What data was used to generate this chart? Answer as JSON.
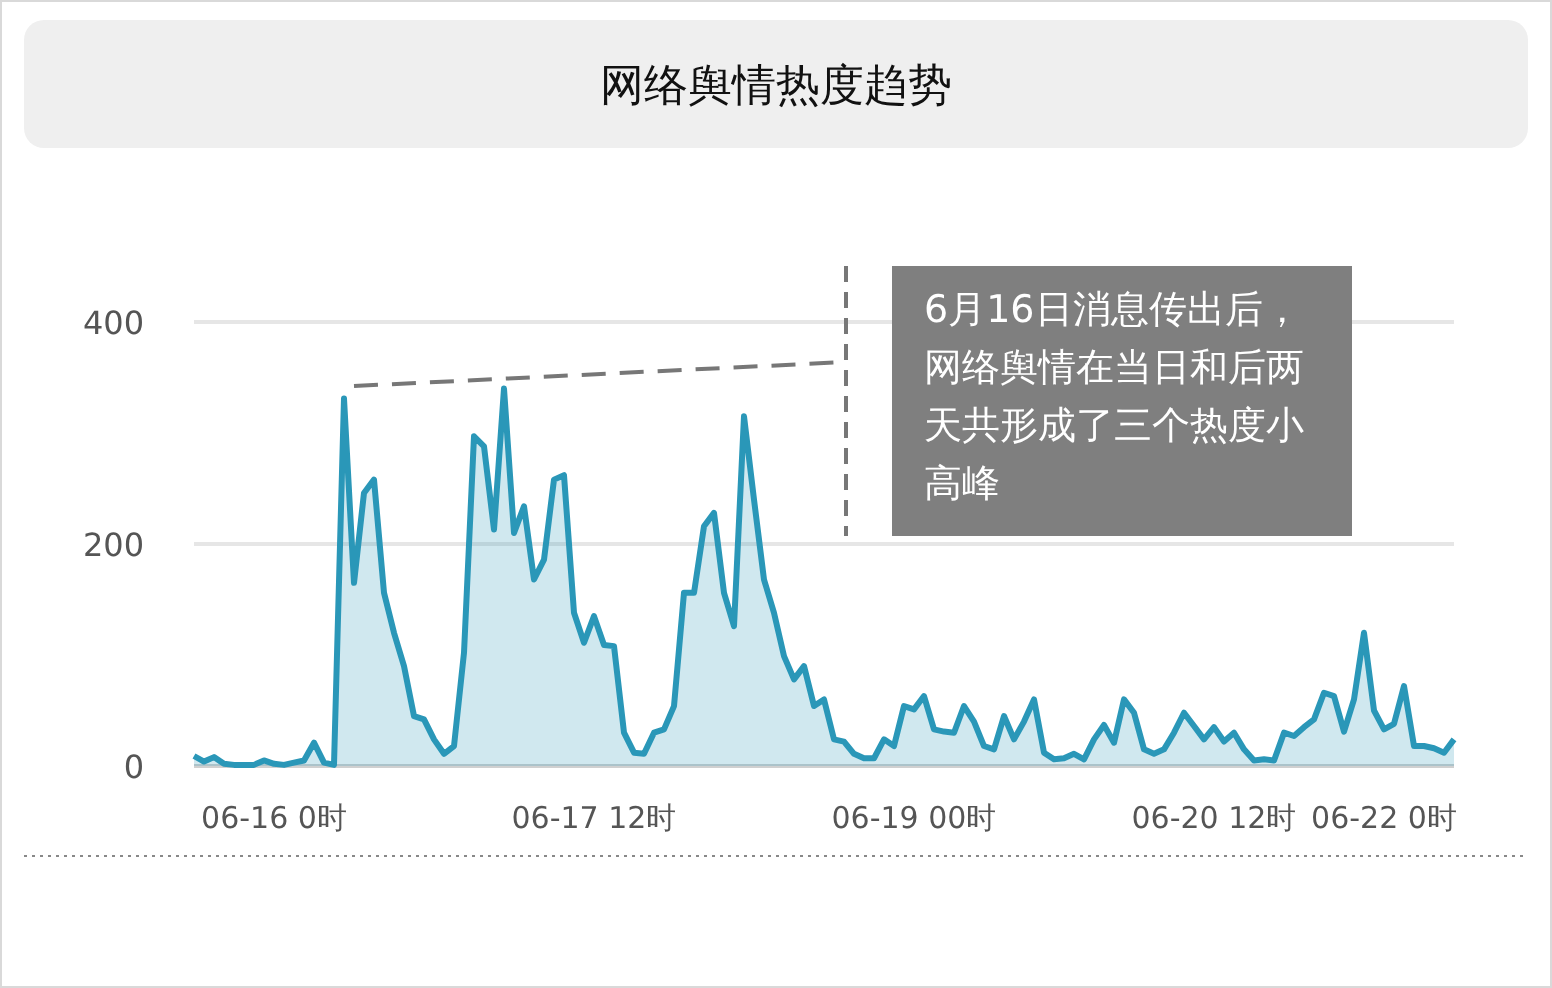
{
  "chart_data": {
    "type": "area",
    "title": "网络舆情热度趋势",
    "categories": [
      null,
      null,
      null,
      null,
      null,
      null,
      null,
      null,
      "06-16 0时",
      null,
      null,
      null,
      null,
      null,
      null,
      null,
      null,
      null,
      null,
      null,
      null,
      null,
      null,
      null,
      null,
      null,
      null,
      null,
      null,
      null,
      null,
      null,
      null,
      null,
      null,
      null,
      null,
      null,
      null,
      null,
      "06-17 12时",
      null,
      null,
      null,
      null,
      null,
      null,
      null,
      null,
      null,
      null,
      null,
      null,
      null,
      null,
      null,
      null,
      null,
      null,
      null,
      null,
      null,
      null,
      null,
      null,
      null,
      null,
      null,
      null,
      null,
      null,
      null,
      "06-19 00时",
      null,
      null,
      null,
      null,
      null,
      null,
      null,
      null,
      null,
      null,
      null,
      null,
      null,
      null,
      null,
      null,
      null,
      null,
      null,
      null,
      null,
      null,
      null,
      null,
      null,
      null,
      null,
      null,
      null,
      "06-20 12时",
      null,
      null,
      null,
      null,
      null,
      null,
      null,
      null,
      null,
      null,
      null,
      null,
      null,
      null,
      null,
      null,
      "06-22 0时",
      null,
      null,
      null,
      null,
      null,
      null,
      null
    ],
    "series": [
      {
        "color": "#2a97b8",
        "values": [
          9,
          4,
          8,
          2,
          1,
          1,
          1,
          5,
          2,
          1,
          3,
          5,
          21,
          3,
          1,
          331,
          165,
          246,
          258,
          156,
          120,
          90,
          45,
          42,
          24,
          11,
          18,
          102,
          297,
          288,
          213,
          340,
          210,
          234,
          168,
          186,
          258,
          262,
          138,
          111,
          135,
          109,
          108,
          30,
          12,
          11,
          30,
          33,
          54,
          156,
          156,
          216,
          228,
          156,
          126,
          315,
          240,
          168,
          138,
          99,
          78,
          90,
          54,
          60,
          24,
          22,
          11,
          7,
          7,
          24,
          18,
          54,
          51,
          63,
          33,
          31,
          30,
          54,
          40,
          18,
          15,
          45,
          24,
          40,
          60,
          12,
          6,
          7,
          11,
          6,
          24,
          37,
          21,
          60,
          48,
          15,
          11,
          15,
          30,
          48,
          36,
          24,
          35,
          22,
          30,
          15,
          5,
          6,
          5,
          30,
          27,
          35,
          42,
          66,
          63,
          31,
          60,
          120,
          50,
          33,
          38,
          72,
          18,
          18,
          16,
          12,
          24
        ]
      }
    ],
    "ylim": [
      0,
      400
    ],
    "yticks": [
      0,
      200,
      400
    ],
    "grid": "y",
    "marker": "none",
    "annotations": [
      "6月16日消息传出后，网络舆情在当日和后两天共形成了三个热度小高峰"
    ]
  }
}
